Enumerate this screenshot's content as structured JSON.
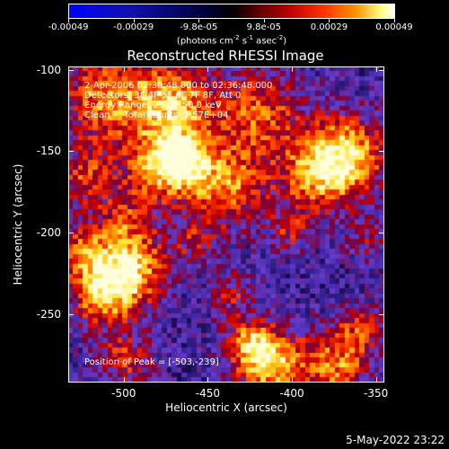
{
  "colorbar": {
    "ticks": [
      "-0.00049",
      "-0.00029",
      "-9.8e-05",
      "9.8e-05",
      "0.00029",
      "0.00049"
    ],
    "units_text": "(photons cm",
    "units_exp1": "-2",
    "units_mid": " s",
    "units_exp2": "-1",
    "units_tail": " asec",
    "units_exp3": "-2",
    "units_close": ")"
  },
  "title": "Reconstructed RHESSI Image",
  "info": {
    "line1": "2-Apr-2006 02:30:48.000 to 02:36:48.000",
    "line2": "Detectors: 3F 4F 5F 6F 7F 8F, Att 0",
    "line3": "Energy Range: 25.0 - 50.0 keV",
    "line4": "Clean     Total counts: 1.57E+04"
  },
  "peak_label": "Position of Peak = [-503,-239]",
  "axes": {
    "xlabel": "Heliocentric X (arcsec)",
    "ylabel": "Heliocentric Y (arcsec)",
    "x_ticks": [
      "-500",
      "-450",
      "-400",
      "-350"
    ],
    "y_ticks": [
      "-100",
      "-150",
      "-200",
      "-250"
    ]
  },
  "footer_date": "5-May-2022 23:22",
  "colors": {
    "background": "#000000",
    "foreground": "#ffffff"
  },
  "chart_data": {
    "type": "heatmap",
    "title": "Reconstructed RHESSI Image",
    "xlabel": "Heliocentric X (arcsec)",
    "ylabel": "Heliocentric Y (arcsec)",
    "xlim": [
      -533,
      -345
    ],
    "ylim": [
      -292,
      -98
    ],
    "x_ticks": [
      -500,
      -450,
      -400,
      -350
    ],
    "y_ticks": [
      -100,
      -150,
      -200,
      -250
    ],
    "colorbar_range": [
      -0.00049,
      0.00049
    ],
    "peak": [
      -503,
      -239
    ]
  }
}
